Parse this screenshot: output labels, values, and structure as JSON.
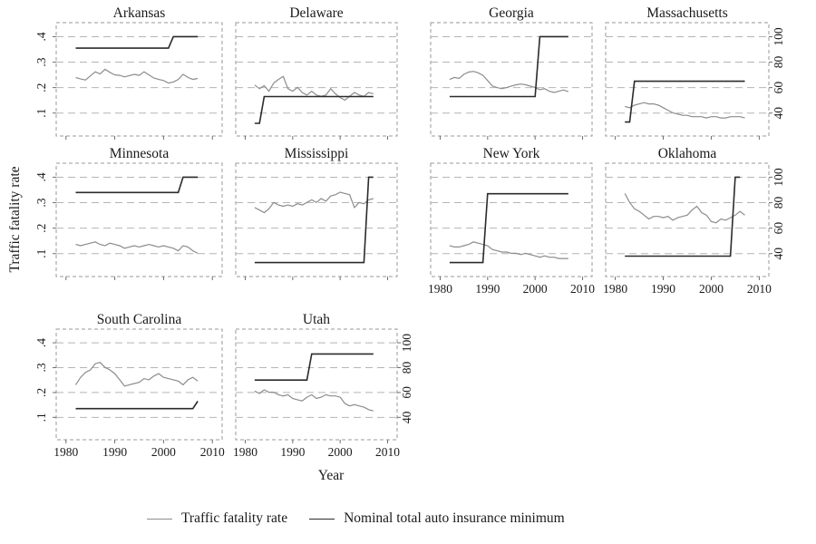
{
  "chart_data": {
    "type": "line",
    "layout": "small-multiples",
    "xlabel": "Year",
    "ylabel": "Traffic fatality rate",
    "x_ticks": [
      1980,
      1990,
      2000,
      2010
    ],
    "x_range": [
      1978,
      2012
    ],
    "left_axis": {
      "tick_labels": [
        ".1",
        ".2",
        ".3",
        ".4"
      ],
      "tick_values": [
        0.1,
        0.2,
        0.3,
        0.4
      ],
      "range": [
        0.01,
        0.455
      ]
    },
    "right_axis": {
      "tick_labels": [
        "40",
        "60",
        "80",
        "100"
      ],
      "tick_values": [
        40,
        60,
        80,
        100
      ],
      "maps_to_left": "left = 0.1 + (right - 40) * 0.005"
    },
    "legend": [
      {
        "label": "Traffic fatality rate",
        "series": "fatality"
      },
      {
        "label": "Nominal total auto insurance minimum",
        "series": "insurance"
      }
    ],
    "colors": {
      "fatality_line": "#8c8c8c",
      "insurance_line": "#2b2b2b",
      "gridline": "#b5b5b5",
      "frame": "#9a9a9a",
      "text": "#1a1a1a"
    },
    "fatality_start_year": 1982,
    "subplots": [
      {
        "title": "Arkansas",
        "row": 0,
        "col": 0,
        "show_left_labels": true,
        "show_right_labels": false,
        "show_x_labels": false,
        "fatality": [
          0.24,
          0.234,
          0.23,
          0.246,
          0.262,
          0.254,
          0.272,
          0.26,
          0.25,
          0.248,
          0.242,
          0.247,
          0.252,
          0.248,
          0.262,
          0.25,
          0.238,
          0.232,
          0.228,
          0.218,
          0.222,
          0.232,
          0.252,
          0.24,
          0.232,
          0.236
        ],
        "insurance": [
          [
            1982,
            91
          ],
          [
            2001,
            91
          ],
          [
            2002,
            100
          ],
          [
            2007,
            100
          ]
        ]
      },
      {
        "title": "Delaware",
        "row": 0,
        "col": 1,
        "show_left_labels": false,
        "show_right_labels": false,
        "show_x_labels": false,
        "fatality": [
          0.21,
          0.196,
          0.208,
          0.186,
          0.218,
          0.232,
          0.244,
          0.196,
          0.186,
          0.201,
          0.181,
          0.171,
          0.186,
          0.171,
          0.166,
          0.171,
          0.196,
          0.176,
          0.161,
          0.151,
          0.166,
          0.181,
          0.171,
          0.166,
          0.181,
          0.176
        ],
        "insurance": [
          [
            1982,
            32
          ],
          [
            1983,
            32
          ],
          [
            1984,
            53
          ],
          [
            2007,
            53
          ]
        ]
      },
      {
        "title": "Georgia",
        "row": 0,
        "col": 2,
        "show_left_labels": false,
        "show_right_labels": false,
        "show_x_labels": false,
        "fatality": [
          0.232,
          0.24,
          0.236,
          0.252,
          0.261,
          0.264,
          0.258,
          0.248,
          0.228,
          0.206,
          0.2,
          0.196,
          0.2,
          0.206,
          0.211,
          0.214,
          0.211,
          0.206,
          0.2,
          0.192,
          0.196,
          0.186,
          0.181,
          0.186,
          0.191,
          0.184
        ],
        "insurance": [
          [
            1982,
            53
          ],
          [
            2000,
            53
          ],
          [
            2001,
            100
          ],
          [
            2007,
            100
          ]
        ]
      },
      {
        "title": "Massachusetts",
        "row": 0,
        "col": 3,
        "show_left_labels": false,
        "show_right_labels": true,
        "show_x_labels": false,
        "fatality": [
          0.126,
          0.121,
          0.131,
          0.136,
          0.141,
          0.136,
          0.136,
          0.131,
          0.121,
          0.111,
          0.101,
          0.096,
          0.091,
          0.091,
          0.086,
          0.086,
          0.086,
          0.081,
          0.086,
          0.086,
          0.081,
          0.081,
          0.086,
          0.086,
          0.086,
          0.081
        ],
        "insurance": [
          [
            1982,
            33
          ],
          [
            1983,
            33
          ],
          [
            1984,
            65
          ],
          [
            2007,
            65
          ]
        ]
      },
      {
        "title": "Minnesota",
        "row": 1,
        "col": 0,
        "show_left_labels": true,
        "show_right_labels": false,
        "show_x_labels": false,
        "fatality": [
          0.136,
          0.131,
          0.136,
          0.141,
          0.146,
          0.136,
          0.131,
          0.141,
          0.136,
          0.131,
          0.121,
          0.126,
          0.131,
          0.126,
          0.131,
          0.136,
          0.131,
          0.126,
          0.131,
          0.126,
          0.121,
          0.111,
          0.131,
          0.126,
          0.111,
          0.101
        ],
        "insurance": [
          [
            1982,
            88
          ],
          [
            2003,
            88
          ],
          [
            2004,
            100
          ],
          [
            2007,
            100
          ]
        ]
      },
      {
        "title": "Mississippi",
        "row": 1,
        "col": 1,
        "show_left_labels": false,
        "show_right_labels": false,
        "show_x_labels": false,
        "fatality": [
          0.281,
          0.271,
          0.261,
          0.276,
          0.301,
          0.291,
          0.286,
          0.291,
          0.286,
          0.296,
          0.291,
          0.301,
          0.311,
          0.301,
          0.316,
          0.306,
          0.326,
          0.331,
          0.341,
          0.336,
          0.331,
          0.281,
          0.301,
          0.296,
          0.311,
          0.316
        ],
        "insurance": [
          [
            1982,
            33
          ],
          [
            2005,
            33
          ],
          [
            2006,
            100
          ],
          [
            2007,
            100
          ]
        ]
      },
      {
        "title": "New York",
        "row": 1,
        "col": 2,
        "show_left_labels": false,
        "show_right_labels": false,
        "show_x_labels": true,
        "fatality": [
          0.131,
          0.126,
          0.126,
          0.131,
          0.136,
          0.146,
          0.141,
          0.136,
          0.131,
          0.116,
          0.111,
          0.106,
          0.106,
          0.101,
          0.101,
          0.096,
          0.101,
          0.096,
          0.091,
          0.086,
          0.091,
          0.086,
          0.086,
          0.081,
          0.081,
          0.081
        ],
        "insurance": [
          [
            1982,
            33
          ],
          [
            1989,
            33
          ],
          [
            1990,
            87
          ],
          [
            2007,
            87
          ]
        ]
      },
      {
        "title": "Oklahoma",
        "row": 1,
        "col": 3,
        "show_left_labels": false,
        "show_right_labels": true,
        "show_x_labels": true,
        "fatality": [
          0.336,
          0.301,
          0.276,
          0.266,
          0.251,
          0.236,
          0.246,
          0.246,
          0.241,
          0.246,
          0.231,
          0.241,
          0.246,
          0.251,
          0.271,
          0.286,
          0.261,
          0.251,
          0.226,
          0.221,
          0.236,
          0.231,
          0.241,
          0.251,
          0.266,
          0.251
        ],
        "insurance": [
          [
            1982,
            38
          ],
          [
            2004,
            38
          ],
          [
            2005,
            100
          ],
          [
            2006,
            100
          ]
        ]
      },
      {
        "title": "South Carolina",
        "row": 2,
        "col": 0,
        "show_left_labels": true,
        "show_right_labels": false,
        "show_x_labels": true,
        "fatality": [
          0.231,
          0.261,
          0.281,
          0.291,
          0.316,
          0.321,
          0.301,
          0.291,
          0.276,
          0.251,
          0.226,
          0.231,
          0.236,
          0.241,
          0.256,
          0.251,
          0.266,
          0.276,
          0.261,
          0.256,
          0.251,
          0.246,
          0.231,
          0.251,
          0.261,
          0.246
        ],
        "insurance": [
          [
            1982,
            47
          ],
          [
            2006,
            47
          ],
          [
            2007,
            53
          ]
        ]
      },
      {
        "title": "Utah",
        "row": 2,
        "col": 1,
        "show_left_labels": false,
        "show_right_labels": true,
        "show_x_labels": true,
        "fatality": [
          0.206,
          0.196,
          0.211,
          0.201,
          0.201,
          0.191,
          0.186,
          0.191,
          0.176,
          0.171,
          0.166,
          0.181,
          0.191,
          0.176,
          0.181,
          0.191,
          0.186,
          0.186,
          0.181,
          0.156,
          0.146,
          0.151,
          0.146,
          0.141,
          0.131,
          0.126
        ],
        "insurance": [
          [
            1982,
            70
          ],
          [
            1993,
            70
          ],
          [
            1994,
            91
          ],
          [
            2007,
            91
          ]
        ]
      }
    ]
  }
}
